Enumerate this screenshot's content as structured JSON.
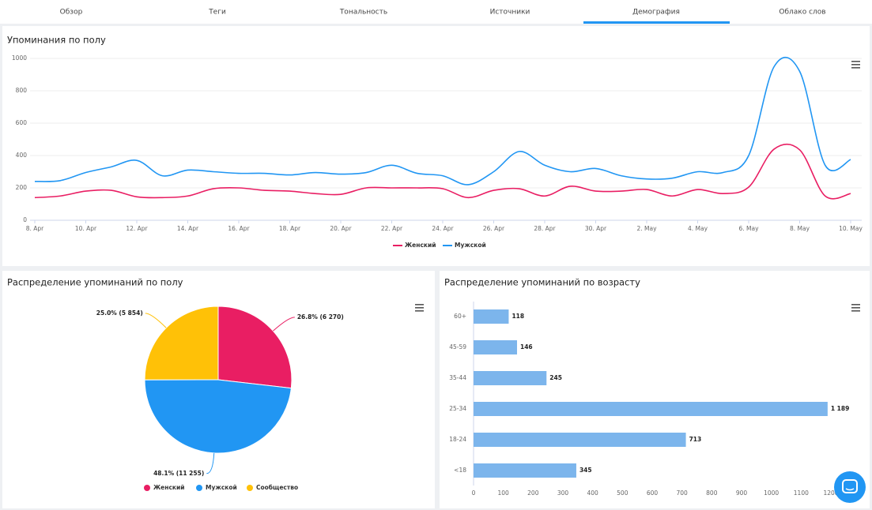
{
  "tabs": [
    "Обзор",
    "Теги",
    "Тональность",
    "Источники",
    "Демография",
    "Облако слов"
  ],
  "chart_data": [
    {
      "type": "line",
      "title": "Упоминания по полу",
      "categories": [
        "8. Apr",
        null,
        "10. Apr",
        null,
        "12. Apr",
        null,
        "14. Apr",
        null,
        "16. Apr",
        null,
        "18. Apr",
        null,
        "20. Apr",
        null,
        "22. Apr",
        null,
        "24. Apr",
        null,
        "26. Apr",
        null,
        "28. Apr",
        null,
        "30. Apr",
        null,
        "2. May",
        null,
        "4. May",
        null,
        "6. May",
        null,
        "8. May",
        null,
        "10. May"
      ],
      "series": [
        {
          "name": "Женский",
          "color": "#e91e63",
          "values": [
            140,
            150,
            180,
            185,
            145,
            140,
            150,
            195,
            200,
            185,
            180,
            165,
            160,
            200,
            200,
            200,
            195,
            140,
            185,
            195,
            150,
            210,
            180,
            180,
            190,
            150,
            190,
            165,
            205,
            440,
            435,
            150,
            165
          ]
        },
        {
          "name": "Мужской",
          "color": "#2196f3",
          "values": [
            240,
            245,
            295,
            330,
            370,
            275,
            310,
            300,
            290,
            290,
            280,
            295,
            285,
            295,
            340,
            290,
            275,
            220,
            300,
            425,
            340,
            300,
            320,
            275,
            255,
            260,
            300,
            295,
            400,
            950,
            920,
            340,
            375
          ]
        }
      ],
      "ylim": [
        0,
        1000
      ],
      "yticks": [
        0,
        200,
        400,
        600,
        800,
        1000
      ],
      "grid": true
    },
    {
      "type": "pie",
      "title": "Распределение упоминаний по полу",
      "categories": [
        "Женский",
        "Мужской",
        "Сообщество"
      ],
      "values": [
        26.8,
        48.1,
        25.0
      ],
      "value_labels": [
        "26.8% (6 270)",
        "48.1% (11 255)",
        "25.0% (5 854)"
      ],
      "colors": [
        "#e91e63",
        "#2196f3",
        "#ffc107"
      ]
    },
    {
      "type": "bar",
      "orientation": "horizontal",
      "title": "Распределение упоминаний по возрасту",
      "categories": [
        "60+",
        "45-59",
        "35-44",
        "25-34",
        "18-24",
        "<18"
      ],
      "values": [
        118,
        146,
        245,
        1189,
        713,
        345
      ],
      "value_labels": [
        "118",
        "146",
        "245",
        "1 189",
        "713",
        "345"
      ],
      "color": "#7cb5ec",
      "xlim": [
        0,
        1200
      ],
      "xticks": [
        0,
        100,
        200,
        300,
        400,
        500,
        600,
        700,
        800,
        900,
        1000,
        1100,
        1200
      ]
    }
  ]
}
